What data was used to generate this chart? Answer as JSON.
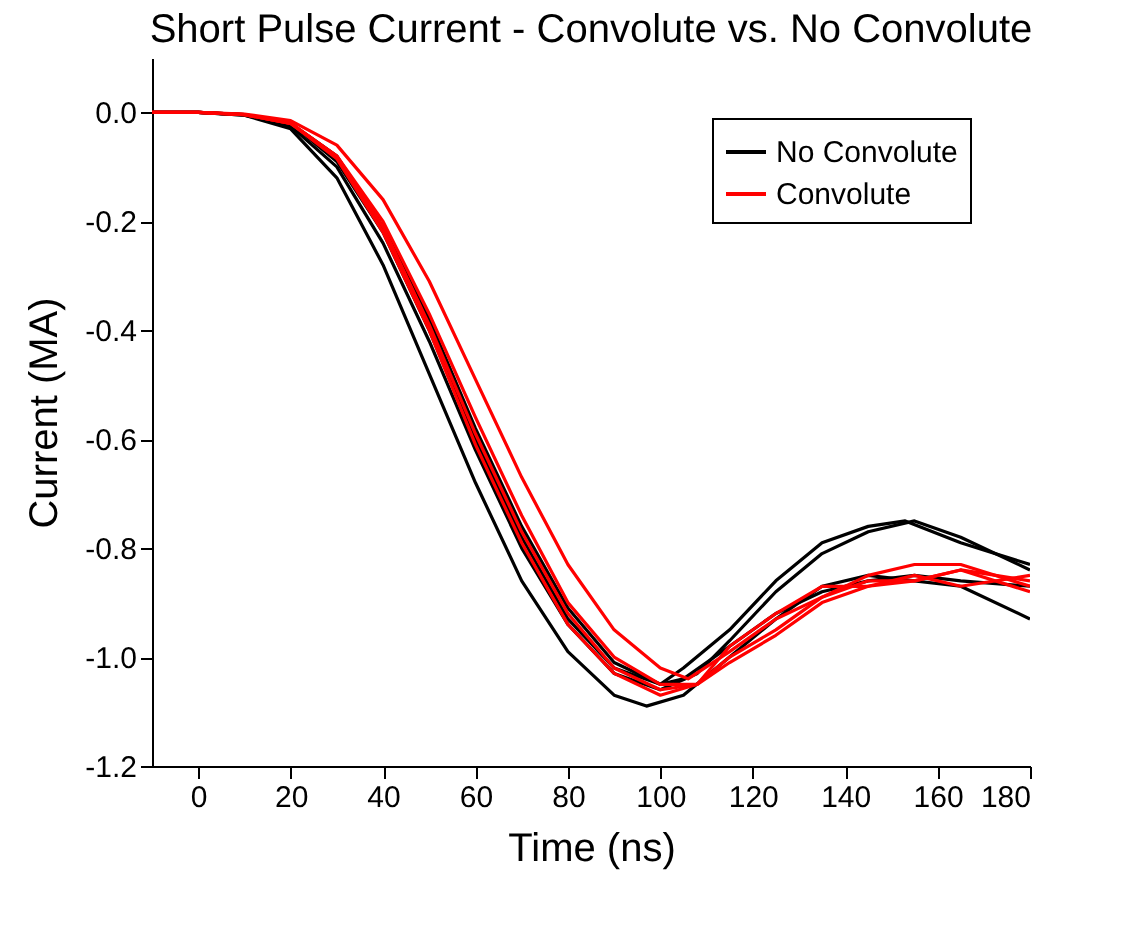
{
  "chart_data": {
    "type": "line",
    "title": "Short Pulse Current - Convolute vs. No Convolute",
    "xlabel": "Time (ns)",
    "ylabel": "Current (MA)",
    "xlim": [
      -10,
      180
    ],
    "xticks": [
      0,
      20,
      40,
      60,
      80,
      100,
      120,
      140,
      160,
      180
    ],
    "ylim": [
      -1.2,
      0.1
    ],
    "yticks": [
      {
        "value": 0,
        "label": "0.0"
      },
      {
        "value": -0.2,
        "label": "-0.2"
      },
      {
        "value": -0.4,
        "label": "-0.4"
      },
      {
        "value": -0.6,
        "label": "-0.6"
      },
      {
        "value": -0.8,
        "label": "-0.8"
      },
      {
        "value": -1,
        "label": "-1.0"
      },
      {
        "value": -1.2,
        "label": "-1.2"
      }
    ],
    "grid": false,
    "legend": "top right",
    "line_style": "solid",
    "marker": "none",
    "series": [
      {
        "name": "No Convolute",
        "color": "#000000",
        "x": [
          -10,
          0,
          10,
          20,
          30,
          40,
          50,
          60,
          70,
          80,
          90,
          97,
          105,
          115,
          125,
          135,
          145,
          155,
          165,
          180
        ],
        "values": [
          0,
          0,
          -0.005,
          -0.03,
          -0.12,
          -0.28,
          -0.48,
          -0.68,
          -0.86,
          -0.99,
          -1.07,
          -1.09,
          -1.07,
          -1,
          -0.93,
          -0.87,
          -0.85,
          -0.86,
          -0.87,
          -0.93
        ]
      },
      {
        "color": "#000000",
        "x": [
          -10,
          0,
          10,
          20,
          30,
          40,
          50,
          60,
          70,
          80,
          90,
          100,
          108,
          115,
          125,
          135,
          145,
          155,
          165,
          180
        ],
        "values": [
          0,
          0,
          -0.005,
          -0.025,
          -0.1,
          -0.24,
          -0.42,
          -0.62,
          -0.8,
          -0.94,
          -1.03,
          -1.06,
          -1.03,
          -0.97,
          -0.88,
          -0.81,
          -0.77,
          -0.75,
          -0.78,
          -0.84
        ]
      },
      {
        "color": "#000000",
        "x": [
          -10,
          0,
          10,
          20,
          30,
          40,
          50,
          60,
          70,
          80,
          90,
          100,
          105,
          115,
          125,
          135,
          145,
          153,
          165,
          180
        ],
        "values": [
          0,
          0,
          -0.004,
          -0.02,
          -0.09,
          -0.22,
          -0.4,
          -0.6,
          -0.78,
          -0.93,
          -1.02,
          -1.05,
          -1.02,
          -0.95,
          -0.86,
          -0.79,
          -0.76,
          -0.75,
          -0.79,
          -0.83
        ]
      },
      {
        "color": "#000000",
        "x": [
          -10,
          0,
          10,
          20,
          30,
          40,
          50,
          60,
          70,
          80,
          90,
          100,
          105,
          115,
          125,
          135,
          145,
          155,
          165,
          180
        ],
        "values": [
          0,
          0,
          -0.004,
          -0.02,
          -0.08,
          -0.21,
          -0.38,
          -0.58,
          -0.76,
          -0.91,
          -1.01,
          -1.05,
          -1.04,
          -0.98,
          -0.92,
          -0.88,
          -0.86,
          -0.85,
          -0.86,
          -0.87
        ]
      },
      {
        "name": "Convolute",
        "color": "#ff0000",
        "x": [
          -10,
          0,
          10,
          20,
          30,
          40,
          50,
          60,
          70,
          80,
          90,
          100,
          106,
          115,
          125,
          135,
          145,
          155,
          165,
          180
        ],
        "values": [
          0,
          0,
          -0.003,
          -0.015,
          -0.06,
          -0.16,
          -0.31,
          -0.49,
          -0.67,
          -0.83,
          -0.95,
          -1.02,
          -1.04,
          -0.99,
          -0.93,
          -0.89,
          -0.86,
          -0.86,
          -0.84,
          -0.86
        ]
      },
      {
        "color": "#ff0000",
        "x": [
          -10,
          0,
          10,
          20,
          30,
          40,
          50,
          60,
          70,
          80,
          90,
          100,
          108,
          115,
          125,
          135,
          145,
          155,
          165,
          180
        ],
        "values": [
          0,
          0,
          -0.004,
          -0.02,
          -0.08,
          -0.2,
          -0.37,
          -0.56,
          -0.74,
          -0.9,
          -1,
          -1.05,
          -1.05,
          -1,
          -0.95,
          -0.89,
          -0.85,
          -0.83,
          -0.83,
          -0.87
        ]
      },
      {
        "color": "#ff0000",
        "x": [
          -10,
          0,
          10,
          20,
          30,
          40,
          50,
          60,
          70,
          80,
          90,
          100,
          108,
          115,
          125,
          135,
          145,
          155,
          165,
          180
        ],
        "values": [
          0,
          0,
          -0.004,
          -0.02,
          -0.08,
          -0.21,
          -0.39,
          -0.59,
          -0.77,
          -0.92,
          -1.02,
          -1.06,
          -1.05,
          -0.98,
          -0.92,
          -0.87,
          -0.87,
          -0.85,
          -0.87,
          -0.85
        ]
      },
      {
        "color": "#ff0000",
        "x": [
          -10,
          0,
          10,
          20,
          30,
          40,
          50,
          60,
          70,
          80,
          90,
          100,
          108,
          115,
          125,
          135,
          145,
          155,
          165,
          180
        ],
        "values": [
          0,
          0,
          -0.004,
          -0.02,
          -0.085,
          -0.22,
          -0.4,
          -0.61,
          -0.79,
          -0.94,
          -1.03,
          -1.07,
          -1.05,
          -1.01,
          -0.96,
          -0.9,
          -0.87,
          -0.86,
          -0.84,
          -0.88
        ]
      }
    ]
  }
}
